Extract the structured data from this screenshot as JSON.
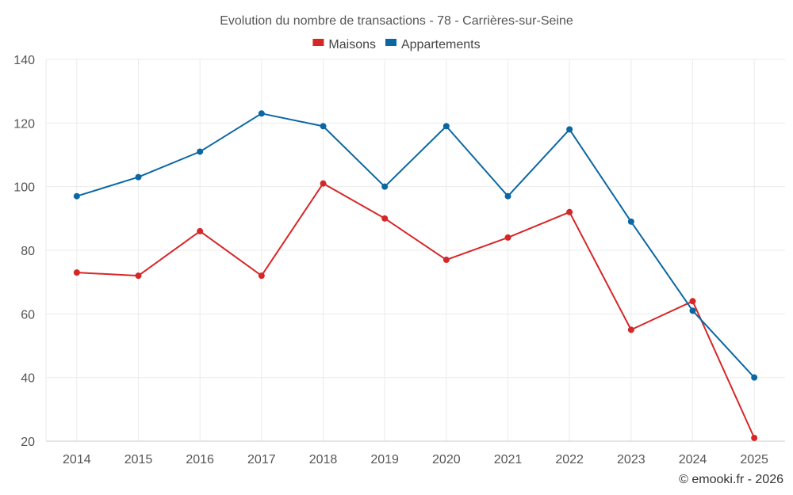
{
  "chart_data": {
    "type": "line",
    "title": "Evolution du nombre de transactions - 78 - Carrières-sur-Seine",
    "xlabel": "",
    "ylabel": "",
    "categories": [
      "2014",
      "2015",
      "2016",
      "2017",
      "2018",
      "2019",
      "2020",
      "2021",
      "2022",
      "2023",
      "2024",
      "2025"
    ],
    "ylim": [
      20,
      140
    ],
    "yticks": [
      20,
      40,
      60,
      80,
      100,
      120,
      140
    ],
    "grid": true,
    "legend_position": "top-center",
    "series": [
      {
        "name": "Maisons",
        "color": "#d62728",
        "values": [
          73,
          72,
          86,
          72,
          101,
          90,
          77,
          84,
          92,
          55,
          64,
          21
        ]
      },
      {
        "name": "Appartements",
        "color": "#0a67a3",
        "values": [
          97,
          103,
          111,
          123,
          119,
          100,
          119,
          97,
          118,
          89,
          61,
          40
        ]
      }
    ]
  },
  "credit": "© emooki.fr - 2026"
}
